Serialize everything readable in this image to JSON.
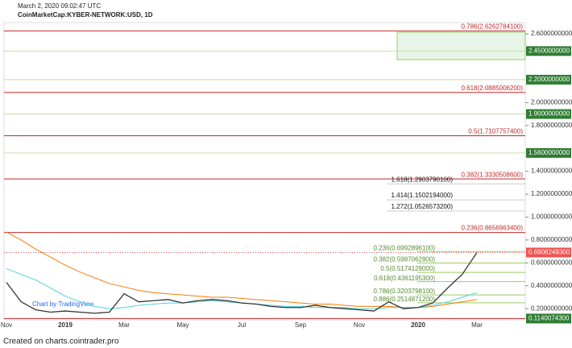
{
  "header": {
    "timestamp": "March 2, 2020 09:02:47 UTC",
    "symbol": "CoinMarketCap:KYBER-NETWORK:USD, 1D"
  },
  "footer": "Created on charts.cointrader.pro",
  "chart_data": {
    "type": "line",
    "watermark": "Chart by TradingView",
    "categories": [
      "Nov",
      null,
      null,
      null,
      "2019",
      null,
      null,
      null,
      "Mar",
      null,
      null,
      null,
      "May",
      null,
      null,
      null,
      "Jul",
      null,
      null,
      null,
      "Sep",
      null,
      null,
      null,
      "Nov",
      null,
      null,
      null,
      "2020",
      null,
      null,
      null,
      "Mar"
    ],
    "values": [
      0.43,
      0.26,
      0.19,
      0.17,
      0.18,
      0.17,
      0.16,
      0.17,
      0.33,
      0.26,
      0.27,
      0.28,
      0.25,
      0.27,
      0.28,
      0.27,
      0.25,
      0.24,
      0.22,
      0.21,
      0.21,
      0.23,
      0.21,
      0.2,
      0.19,
      0.18,
      0.26,
      0.2,
      0.21,
      0.25,
      0.38,
      0.5,
      0.69
    ],
    "color": "#333333",
    "series": [
      {
        "color": "#f57c00",
        "values": [
          0.87,
          0.8,
          0.72,
          0.65,
          0.58,
          0.52,
          0.47,
          0.42,
          0.39,
          0.36,
          0.34,
          0.33,
          0.32,
          0.31,
          0.3,
          0.3,
          0.29,
          0.28,
          0.27,
          0.26,
          0.25,
          0.24,
          0.24,
          0.23,
          0.22,
          0.22,
          0.22,
          0.21,
          0.21,
          0.22,
          0.24,
          0.26,
          0.28
        ]
      },
      {
        "color": "#4dd0e1",
        "values": [
          0.55,
          0.5,
          0.45,
          0.38,
          0.31,
          0.26,
          0.22,
          0.2,
          0.21,
          0.23,
          0.24,
          0.25,
          0.25,
          0.26,
          0.27,
          0.26,
          0.25,
          0.24,
          0.23,
          0.22,
          0.22,
          0.21,
          0.21,
          0.21,
          0.2,
          0.2,
          0.21,
          0.21,
          0.21,
          0.23,
          0.26,
          0.3,
          0.34
        ]
      }
    ],
    "ylim": [
      0.11,
      2.72
    ],
    "yticks": [
      {
        "value": 0.2,
        "label": "0.2000000000"
      },
      {
        "value": 0.4,
        "label": "0.4000000000"
      },
      {
        "value": 0.6,
        "label": "0.6000000000"
      },
      {
        "value": 0.8,
        "label": "0.8000000000"
      },
      {
        "value": 1.0,
        "label": "1.0000000000"
      },
      {
        "value": 1.2,
        "label": "1.2000000000"
      },
      {
        "value": 1.4,
        "label": "1.4000000000"
      },
      {
        "value": 1.8,
        "label": "1.8000000000"
      },
      {
        "value": 2.0,
        "label": "2.0000000000"
      },
      {
        "value": 2.6,
        "label": "2.6000000000"
      }
    ],
    "red_levels": [
      {
        "value": 2.62627841,
        "label": "0.786(2.6262784100)"
      },
      {
        "value": 2.08850062,
        "label": "0.618(2.0885006200)"
      },
      {
        "value": 1.71077574,
        "label": "0.5(1.7107757400)"
      },
      {
        "value": 1.33305086,
        "label": "0.382(1.3330508600)"
      },
      {
        "value": 0.86569634,
        "label": "0.236(0.8656963400)"
      }
    ],
    "red_color": "#c62828",
    "axis_levels": [
      {
        "value": 2.45,
        "label": "2.4500000000"
      },
      {
        "value": 2.2,
        "label": "2.2000000000"
      },
      {
        "value": 1.9,
        "label": "1.9000000000"
      },
      {
        "value": 1.56,
        "label": "1.5600000000"
      },
      {
        "value": 0.11400743,
        "label": "0.1140074300"
      }
    ],
    "axis_level_color": "#2e7d32",
    "extension_levels": [
      {
        "value": 1.29037901,
        "label": "1.618(1.2903790100)"
      },
      {
        "value": 1.1502194,
        "label": "1.414(1.1502194000)"
      },
      {
        "value": 1.05265732,
        "label": "1.272(1.0526573200)"
      }
    ],
    "retracement_levels": [
      {
        "value": 0.69928961,
        "label": "0.236(0.6992896100)"
      },
      {
        "value": 0.59870628,
        "label": "0.382(0.5987062800)"
      },
      {
        "value": 0.5174129,
        "label": "0.5(0.5174129000)"
      },
      {
        "value": 0.43611953,
        "label": "0.618(0.4361195300)"
      },
      {
        "value": 0.32037981,
        "label": "0.786(0.3203798100)"
      },
      {
        "value": 0.25148712,
        "label": "0.886(0.2514871200)"
      }
    ],
    "retracement_color": "#558b2f",
    "last_price": {
      "value": 0.69082493,
      "label": "0.6908249300"
    },
    "last_price_color": "#ef5350"
  }
}
